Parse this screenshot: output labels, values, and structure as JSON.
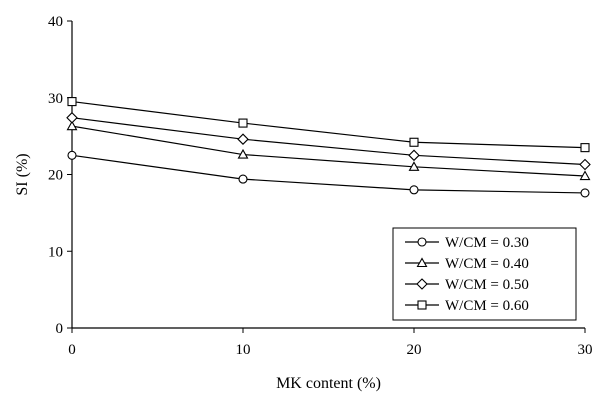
{
  "chart_data": {
    "type": "line",
    "xlabel": "MK content (%)",
    "ylabel": "SI (%)",
    "xlim": [
      0,
      30
    ],
    "ylim": [
      0,
      40
    ],
    "xticks": [
      0,
      10,
      20,
      30
    ],
    "yticks": [
      0,
      10,
      20,
      30,
      40
    ],
    "x": [
      0,
      10,
      20,
      30
    ],
    "grid": false,
    "legend_position": "bottom-right",
    "series": [
      {
        "name": "W/CM = 0.30",
        "marker": "circle",
        "values": [
          22.5,
          19.4,
          18.0,
          17.6
        ]
      },
      {
        "name": "W/CM = 0.40",
        "marker": "triangle",
        "values": [
          26.3,
          22.6,
          21.0,
          19.8
        ]
      },
      {
        "name": "W/CM = 0.50",
        "marker": "diamond",
        "values": [
          27.4,
          24.6,
          22.5,
          21.3
        ]
      },
      {
        "name": "W/CM = 0.60",
        "marker": "square",
        "values": [
          29.5,
          26.7,
          24.2,
          23.5
        ]
      }
    ]
  }
}
